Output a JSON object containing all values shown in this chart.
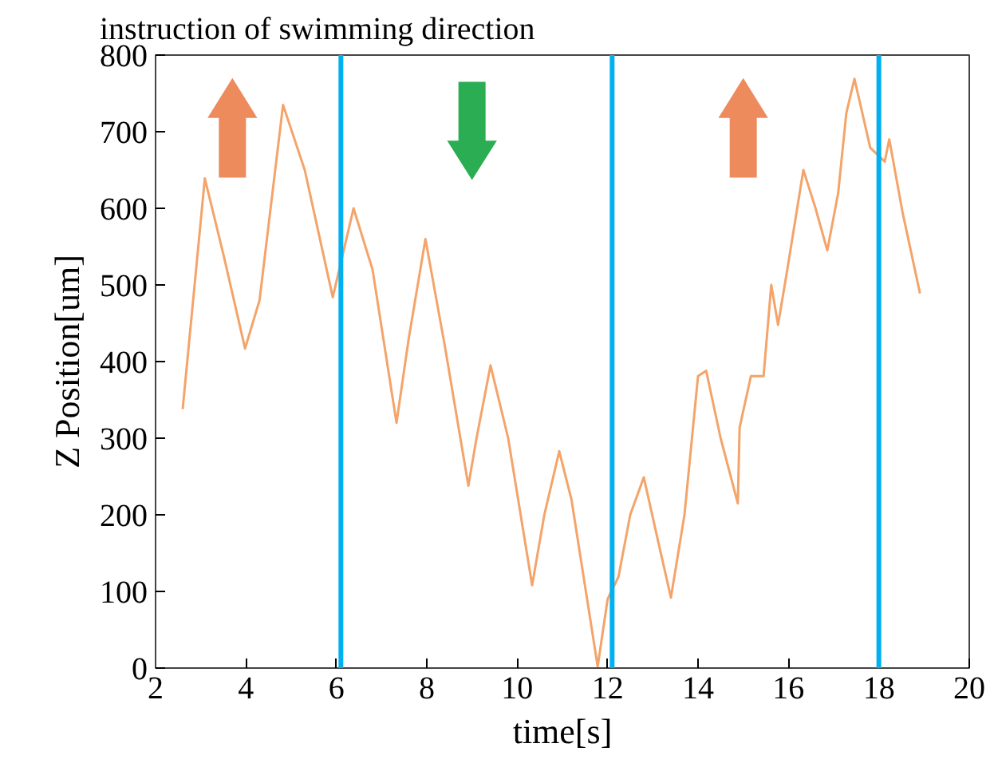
{
  "chart_data": {
    "type": "line",
    "xlabel": "time[s]",
    "ylabel": "Z Position[um]",
    "annotations": [
      "instruction of swimming direction"
    ],
    "x": [
      2.6,
      3.09,
      3.5,
      3.98,
      4.3,
      4.82,
      5.3,
      5.92,
      6.38,
      6.8,
      7.33,
      7.6,
      7.97,
      8.4,
      8.92,
      9.1,
      9.41,
      9.8,
      10.33,
      10.6,
      10.93,
      11.2,
      11.78,
      12.0,
      12.24,
      12.5,
      12.8,
      13.1,
      13.4,
      13.7,
      14.0,
      14.18,
      14.5,
      14.88,
      14.92,
      15.17,
      15.45,
      15.62,
      15.77,
      15.98,
      16.33,
      16.6,
      16.86,
      17.1,
      17.28,
      17.46,
      17.81,
      18.13,
      18.23,
      18.52,
      18.91
    ],
    "series": [
      {
        "color": "#f4a46a",
        "values": [
          338,
          639,
          540,
          417,
          480,
          735,
          650,
          484,
          600,
          520,
          320,
          430,
          560,
          420,
          238,
          300,
          395,
          300,
          108,
          200,
          283,
          220,
          2,
          90,
          119,
          200,
          249,
          170,
          92,
          200,
          381,
          388,
          300,
          215,
          314,
          381,
          381,
          500,
          448,
          522,
          650,
          600,
          545,
          620,
          724,
          769,
          679,
          661,
          690,
          596,
          489
        ]
      }
    ],
    "xlim": [
      2,
      20
    ],
    "ylim": [
      0,
      800
    ],
    "xticks": [
      2,
      4,
      6,
      8,
      10,
      12,
      14,
      16,
      18,
      20
    ],
    "yticks": [
      0,
      100,
      200,
      300,
      400,
      500,
      600,
      700,
      800
    ],
    "ref_lines": [
      {
        "axis": "x",
        "value": 6.1,
        "color": "#00b0f0"
      },
      {
        "axis": "x",
        "value": 12.1,
        "color": "#00b0f0"
      },
      {
        "axis": "x",
        "value": 18.0,
        "color": "#00b0f0"
      }
    ],
    "grid": false,
    "marker": "none",
    "line_style": "solid"
  }
}
